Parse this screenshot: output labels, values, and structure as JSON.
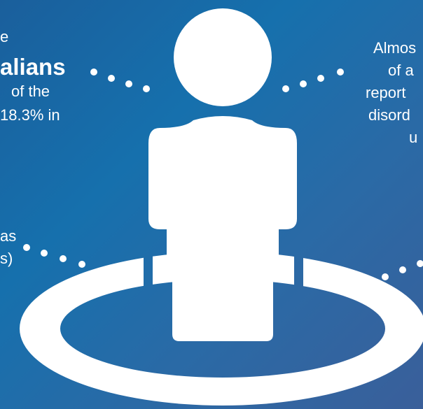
{
  "left_top": {
    "line1": "e",
    "line2": "alians",
    "line3": "of the",
    "line4": "18.3% in"
  },
  "left_mid": {
    "line1": "as",
    "line2": "s)"
  },
  "right_top": {
    "line1": "Almos",
    "line2": "of a",
    "line3": "report",
    "line4": "disord",
    "line5": "u"
  },
  "colors": {
    "background_start": "#1a5f9c",
    "background_end": "#3a5f9a",
    "foreground": "#ffffff"
  },
  "icons": [
    "person-icon",
    "ring-icon"
  ]
}
